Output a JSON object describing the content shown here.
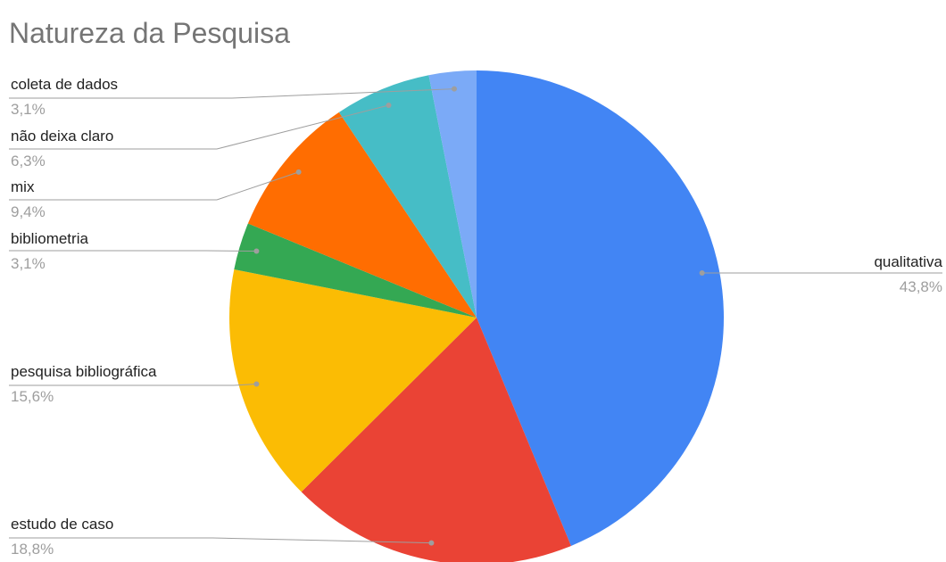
{
  "chart_data": {
    "type": "pie",
    "title": "Natureza da Pesquisa",
    "slices": [
      {
        "label": "qualitativa",
        "percent_label": "43,8%",
        "value": 43.8,
        "color": "#4285F4"
      },
      {
        "label": "estudo de caso",
        "percent_label": "18,8%",
        "value": 18.8,
        "color": "#EA4335"
      },
      {
        "label": "pesquisa bibliográfica",
        "percent_label": "15,6%",
        "value": 15.6,
        "color": "#FBBC04"
      },
      {
        "label": "bibliometria",
        "percent_label": "3,1%",
        "value": 3.1,
        "color": "#34A853"
      },
      {
        "label": "mix",
        "percent_label": "9,4%",
        "value": 9.4,
        "color": "#FF6D01"
      },
      {
        "label": "não deixa claro",
        "percent_label": "6,3%",
        "value": 6.3,
        "color": "#46BDC6"
      },
      {
        "label": "coleta de dados",
        "percent_label": "3,1%",
        "value": 3.1,
        "color": "#7BAAF7"
      }
    ],
    "legend": "none"
  }
}
